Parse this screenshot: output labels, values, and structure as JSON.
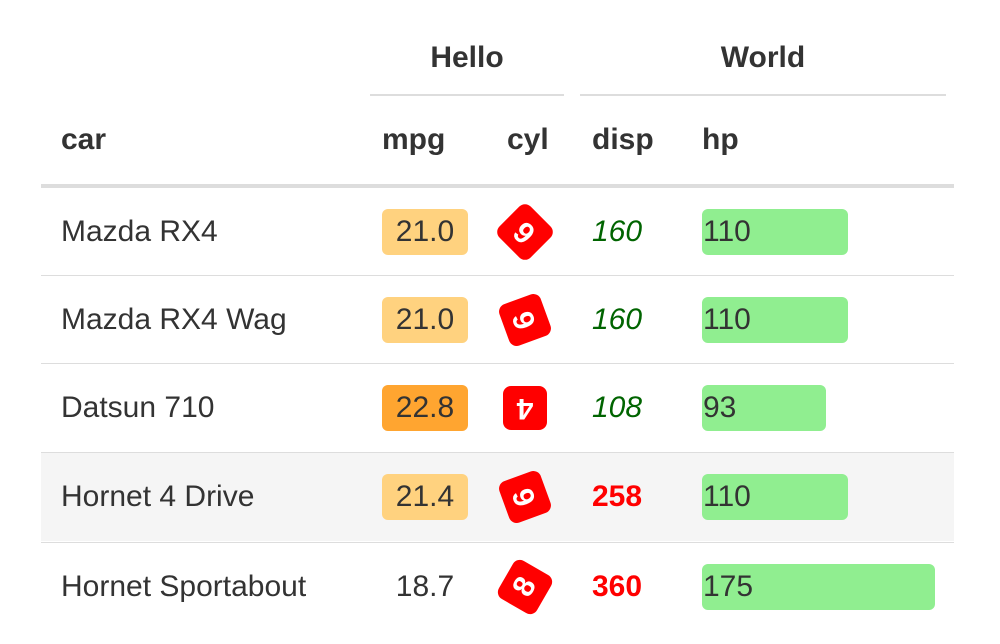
{
  "group_headers": {
    "hello": "Hello",
    "world": "World"
  },
  "columns": {
    "car": "car",
    "mpg": "mpg",
    "cyl": "cyl",
    "disp": "disp",
    "hp": "hp"
  },
  "colors": {
    "mpg_light": "#ffd27f",
    "mpg_dark": "#ffa530",
    "cyl_badge": "#ff0000",
    "disp_low": "#006400",
    "disp_high": "#ff0000",
    "hp_bar": "#90ee90",
    "shaded_row": "#f5f5f5"
  },
  "rows": [
    {
      "car": "Mazda RX4",
      "mpg": "21.0",
      "mpg_style": "light",
      "cyl": "6",
      "cyl_rotate": -135,
      "disp": "160",
      "disp_style": "low",
      "hp": "110",
      "hp_value": 110
    },
    {
      "car": "Mazda RX4 Wag",
      "mpg": "21.0",
      "mpg_style": "light",
      "cyl": "6",
      "cyl_rotate": -110,
      "disp": "160",
      "disp_style": "low",
      "hp": "110",
      "hp_value": 110
    },
    {
      "car": "Datsun 710",
      "mpg": "22.8",
      "mpg_style": "dark",
      "cyl": "4",
      "cyl_rotate": 180,
      "disp": "108",
      "disp_style": "low",
      "hp": "93",
      "hp_value": 93
    },
    {
      "car": "Hornet 4 Drive",
      "mpg": "21.4",
      "mpg_style": "light",
      "cyl": "6",
      "cyl_rotate": -110,
      "disp": "258",
      "disp_style": "high",
      "hp": "110",
      "hp_value": 110
    },
    {
      "car": "Hornet Sportabout",
      "mpg": "18.7",
      "mpg_style": "none",
      "cyl": "8",
      "cyl_rotate": -60,
      "disp": "360",
      "disp_style": "high",
      "hp": "175",
      "hp_value": 175
    }
  ],
  "hp_max": 175
}
